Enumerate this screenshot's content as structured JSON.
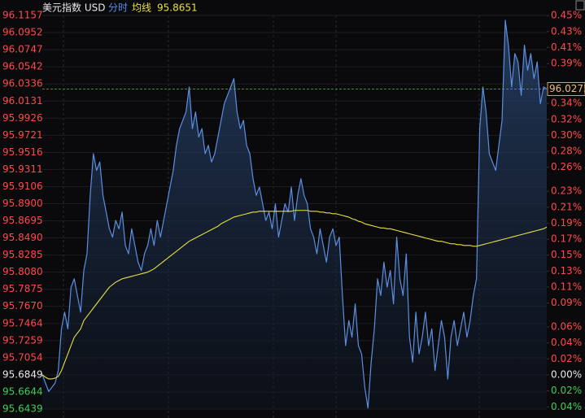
{
  "chart_data": {
    "type": "line",
    "title": "美元指数 USD",
    "average_value": 95.8651,
    "last_value": 96.0275,
    "grid": true,
    "ylim": [
      95.6439,
      96.1157
    ],
    "yticks": [
      96.1157,
      96.0952,
      96.0747,
      96.0542,
      96.0336,
      96.0131,
      95.9926,
      95.9721,
      95.9516,
      95.9311,
      95.9106,
      {
        "value": 95.89,
        "label": "95.8900"
      },
      95.8695,
      {
        "value": 95.849,
        "label": "95.8490"
      },
      95.8285,
      {
        "value": 95.808,
        "label": "95.8080"
      },
      95.7875,
      {
        "value": 95.767,
        "label": "95.7670"
      },
      95.7464,
      95.7259,
      95.7054,
      95.6849,
      95.6644,
      95.6439
    ],
    "y2lim": [
      -0.0428,
      0.4502
    ],
    "y2ticks": [
      {
        "value": 0.45,
        "label": "0.45%"
      },
      {
        "value": 0.43,
        "label": "0.43%"
      },
      {
        "value": 0.41,
        "label": "0.41%"
      },
      {
        "value": 0.39,
        "label": "0.39%"
      },
      {
        "value": 0.36,
        "label": "0.36%"
      },
      {
        "value": 0.34,
        "label": "0.34%"
      },
      {
        "value": 0.32,
        "label": "0.32%"
      },
      {
        "value": 0.3,
        "label": "0.30%"
      },
      {
        "value": 0.28,
        "label": "0.28%"
      },
      {
        "value": 0.26,
        "label": "0.26%"
      },
      {
        "value": 0.23,
        "label": "0.23%"
      },
      {
        "value": 0.21,
        "label": "0.21%"
      },
      {
        "value": 0.19,
        "label": "0.19%"
      },
      {
        "value": 0.17,
        "label": "0.17%"
      },
      {
        "value": 0.15,
        "label": "0.15%"
      },
      {
        "value": 0.13,
        "label": "0.13%"
      },
      {
        "value": 0.11,
        "label": "0.11%"
      },
      {
        "value": 0.09,
        "label": "0.09%"
      },
      {
        "value": 0.06,
        "label": "0.06%"
      },
      {
        "value": 0.04,
        "label": "0.04%"
      },
      {
        "value": 0.02,
        "label": "0.02%"
      },
      {
        "value": 0,
        "label": "0.00%"
      },
      {
        "value": -0.02,
        "label": "0.02%"
      },
      {
        "value": -0.04,
        "label": "0.04%"
      }
    ],
    "series": [
      {
        "name": "分时",
        "color": "#5b8fe0",
        "values": [
          95.685,
          95.675,
          95.665,
          95.67,
          95.675,
          95.69,
          95.74,
          95.76,
          95.74,
          95.79,
          95.8,
          95.78,
          95.76,
          95.81,
          95.83,
          95.9,
          95.95,
          95.93,
          95.94,
          95.9,
          95.88,
          95.86,
          95.85,
          95.87,
          95.86,
          95.88,
          95.84,
          95.83,
          95.86,
          95.84,
          95.82,
          95.81,
          95.83,
          95.84,
          95.86,
          95.84,
          95.87,
          95.85,
          95.87,
          95.89,
          95.91,
          95.93,
          95.96,
          95.98,
          95.99,
          96.0,
          96.03,
          95.98,
          96.0,
          95.97,
          95.98,
          95.95,
          95.96,
          95.94,
          95.95,
          95.97,
          95.99,
          96.01,
          96.02,
          96.03,
          96.04,
          96.0,
          95.98,
          95.99,
          95.96,
          95.95,
          95.92,
          95.9,
          95.91,
          95.89,
          95.87,
          95.88,
          95.86,
          95.89,
          95.85,
          95.87,
          95.89,
          95.88,
          95.91,
          95.87,
          95.9,
          95.92,
          95.9,
          95.89,
          95.86,
          95.85,
          95.83,
          95.86,
          95.84,
          95.82,
          95.85,
          95.86,
          95.84,
          95.85,
          95.78,
          95.72,
          95.75,
          95.73,
          95.77,
          95.72,
          95.71,
          95.67,
          95.645,
          95.7,
          95.74,
          95.8,
          95.78,
          95.82,
          95.79,
          95.81,
          95.77,
          95.85,
          95.8,
          95.78,
          95.83,
          95.73,
          95.7,
          95.76,
          95.71,
          95.73,
          95.76,
          95.72,
          95.74,
          95.69,
          95.72,
          95.75,
          95.73,
          95.68,
          95.73,
          95.75,
          95.72,
          95.74,
          95.76,
          95.73,
          95.75,
          95.78,
          95.8,
          95.98,
          96.03,
          96.0,
          95.95,
          95.94,
          95.93,
          95.96,
          95.99,
          96.11,
          96.08,
          96.03,
          96.07,
          96.06,
          96.02,
          96.08,
          96.05,
          96.07,
          96.04,
          96.06,
          96.01,
          96.03,
          96.0275
        ]
      },
      {
        "name": "均线",
        "color": "#e6e040",
        "values": [
          95.685,
          95.682,
          95.68,
          95.68,
          95.681,
          95.683,
          95.69,
          95.7,
          95.71,
          95.72,
          95.73,
          95.735,
          95.74,
          95.75,
          95.755,
          95.76,
          95.765,
          95.77,
          95.775,
          95.78,
          95.785,
          95.79,
          95.793,
          95.796,
          95.798,
          95.8,
          95.801,
          95.802,
          95.803,
          95.804,
          95.805,
          95.806,
          95.807,
          95.808,
          95.81,
          95.812,
          95.815,
          95.818,
          95.821,
          95.824,
          95.827,
          95.83,
          95.833,
          95.836,
          95.839,
          95.842,
          95.845,
          95.847,
          95.849,
          95.851,
          95.853,
          95.855,
          95.857,
          95.859,
          95.861,
          95.863,
          95.866,
          95.868,
          95.87,
          95.872,
          95.874,
          95.875,
          95.876,
          95.877,
          95.878,
          95.879,
          95.88,
          95.88,
          95.881,
          95.881,
          95.881,
          95.881,
          95.881,
          95.881,
          95.881,
          95.881,
          95.881,
          95.881,
          95.881,
          95.882,
          95.882,
          95.882,
          95.882,
          95.882,
          95.881,
          95.881,
          95.881,
          95.88,
          95.88,
          95.879,
          95.879,
          95.878,
          95.878,
          95.877,
          95.876,
          95.875,
          95.874,
          95.872,
          95.871,
          95.869,
          95.868,
          95.866,
          95.865,
          95.864,
          95.863,
          95.862,
          95.861,
          95.861,
          95.86,
          95.86,
          95.859,
          95.858,
          95.857,
          95.856,
          95.855,
          95.854,
          95.853,
          95.852,
          95.851,
          95.85,
          95.849,
          95.848,
          95.847,
          95.846,
          95.845,
          95.845,
          95.844,
          95.843,
          95.842,
          95.842,
          95.841,
          95.841,
          95.84,
          95.84,
          95.84,
          95.839,
          95.839,
          95.84,
          95.841,
          95.842,
          95.843,
          95.844,
          95.845,
          95.846,
          95.847,
          95.848,
          95.849,
          95.85,
          95.851,
          95.852,
          95.853,
          95.854,
          95.855,
          95.856,
          95.857,
          95.858,
          95.859,
          95.86,
          95.862
        ]
      }
    ]
  }
}
